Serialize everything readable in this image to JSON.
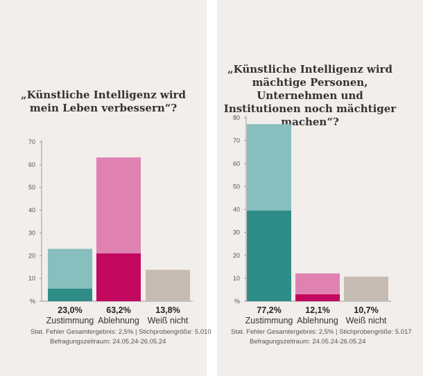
{
  "colors": {
    "background": "#f1eeeb",
    "zustimmung_light": "#86bfbd",
    "zustimmung_dark": "#2f8d88",
    "ablehnung_light": "#df82b1",
    "ablehnung_dark": "#c2085e",
    "weiss_nicht": "#c5bbb2",
    "axis": "#999999"
  },
  "chart_data": [
    {
      "type": "bar",
      "stacked": true,
      "title": "„Künstliche Intelligenz wird mein Leben verbessern“?",
      "ylim": [
        0,
        70
      ],
      "yticks": [
        "%",
        "10",
        "20",
        "30",
        "40",
        "50",
        "60",
        "70"
      ],
      "categories": [
        "Zustimmung",
        "Ablehnung",
        "Weiß nicht"
      ],
      "value_labels": [
        "23,0%",
        "63,2%",
        "13,8%"
      ],
      "totals": [
        23.0,
        63.2,
        13.8
      ],
      "dark_part": [
        5.5,
        21.0,
        null
      ],
      "footer_lines": [
        "Stat. Fehler Gesamtergebnis: 2,5% | Stichprobengröße: 5.010",
        "Befragungszeitraum: 24.05.24-26.05.24"
      ]
    },
    {
      "type": "bar",
      "stacked": true,
      "title": "„Künstliche Intelligenz wird mächtige Personen, Unternehmen und Institutionen noch mächtiger machen“?",
      "ylim": [
        0,
        80
      ],
      "yticks": [
        "%",
        "10",
        "20",
        "30",
        "40",
        "50",
        "60",
        "70",
        "80"
      ],
      "categories": [
        "Zustimmung",
        "Ablehnung",
        "Weiß nicht"
      ],
      "value_labels": [
        "77,2%",
        "12,1%",
        "10,7%"
      ],
      "totals": [
        77.2,
        12.1,
        10.7
      ],
      "dark_part": [
        39.5,
        3.0,
        null
      ],
      "footer_lines": [
        "Stat. Fehler Gesamtergebnis: 2,5% | Stichprobengröße: 5.017",
        "Befragungszeitraum: 24.05.24-26.05.24"
      ]
    }
  ],
  "titles": {
    "left": "„Künstliche Intelligenz wird mein Leben verbessern“?",
    "right": "„Künstliche Intelligenz wird mächtige Personen, Unternehmen und Institutionen noch mächtiger machen“?"
  },
  "footers": {
    "left": [
      "Stat. Fehler Gesamtergebnis: 2,5% | Stichprobengröße: 5.010",
      "Befragungszeitraum: 24.05.24-26.05.24"
    ],
    "right": [
      "Stat. Fehler Gesamtergebnis: 2,5% | Stichprobengröße: 5.017",
      "Befragungszeitraum: 24.05.24-26.05.24"
    ]
  }
}
